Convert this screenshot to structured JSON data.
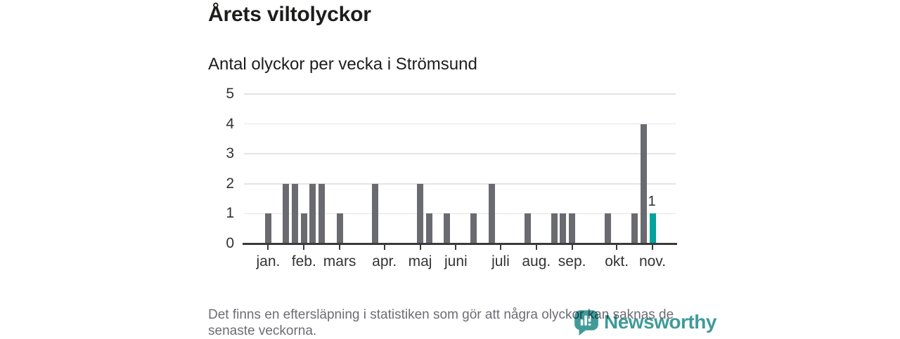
{
  "header": {
    "title": "Årets viltolyckor",
    "subtitle": "Antal olyckor per vecka i Strömsund"
  },
  "chart_data": {
    "type": "bar",
    "title": "Årets viltolyckor",
    "subtitle": "Antal olyckor per vecka i Strömsund",
    "x_unit": "week of year",
    "ylim": [
      0,
      5
    ],
    "yticks": [
      0,
      1,
      2,
      3,
      4,
      5
    ],
    "grid": true,
    "bars": [
      {
        "week": 3,
        "value": 1
      },
      {
        "week": 5,
        "value": 2
      },
      {
        "week": 6,
        "value": 2
      },
      {
        "week": 7,
        "value": 1
      },
      {
        "week": 8,
        "value": 2
      },
      {
        "week": 9,
        "value": 2
      },
      {
        "week": 11,
        "value": 1
      },
      {
        "week": 15,
        "value": 2
      },
      {
        "week": 20,
        "value": 2
      },
      {
        "week": 21,
        "value": 1
      },
      {
        "week": 23,
        "value": 1
      },
      {
        "week": 26,
        "value": 1
      },
      {
        "week": 28,
        "value": 2
      },
      {
        "week": 32,
        "value": 1
      },
      {
        "week": 35,
        "value": 1
      },
      {
        "week": 36,
        "value": 1
      },
      {
        "week": 37,
        "value": 1
      },
      {
        "week": 41,
        "value": 1
      },
      {
        "week": 44,
        "value": 1
      },
      {
        "week": 45,
        "value": 4
      },
      {
        "week": 46,
        "value": 1,
        "highlight": true,
        "label": "1"
      }
    ],
    "month_ticks": [
      {
        "label": "jan.",
        "week": 3
      },
      {
        "label": "feb.",
        "week": 7
      },
      {
        "label": "mars",
        "week": 11
      },
      {
        "label": "apr.",
        "week": 16
      },
      {
        "label": "maj",
        "week": 20
      },
      {
        "label": "juni",
        "week": 24
      },
      {
        "label": "juli",
        "week": 29
      },
      {
        "label": "aug.",
        "week": 33
      },
      {
        "label": "sep.",
        "week": 37
      },
      {
        "label": "okt.",
        "week": 42
      },
      {
        "label": "nov.",
        "week": 46
      }
    ],
    "colors": {
      "bar": "#6a6a71",
      "highlight": "#00a39c",
      "axis": "#3a3a3a",
      "grid": "#e4e4e4",
      "tick_text": "#333333"
    }
  },
  "footer": {
    "note_line1": "Det finns en eftersläpning i statistiken som gör att några olyckor kan saknas de",
    "note_line2": "senaste veckorna.",
    "brand": "Newsworthy",
    "brand_color": "#3f9b99"
  }
}
